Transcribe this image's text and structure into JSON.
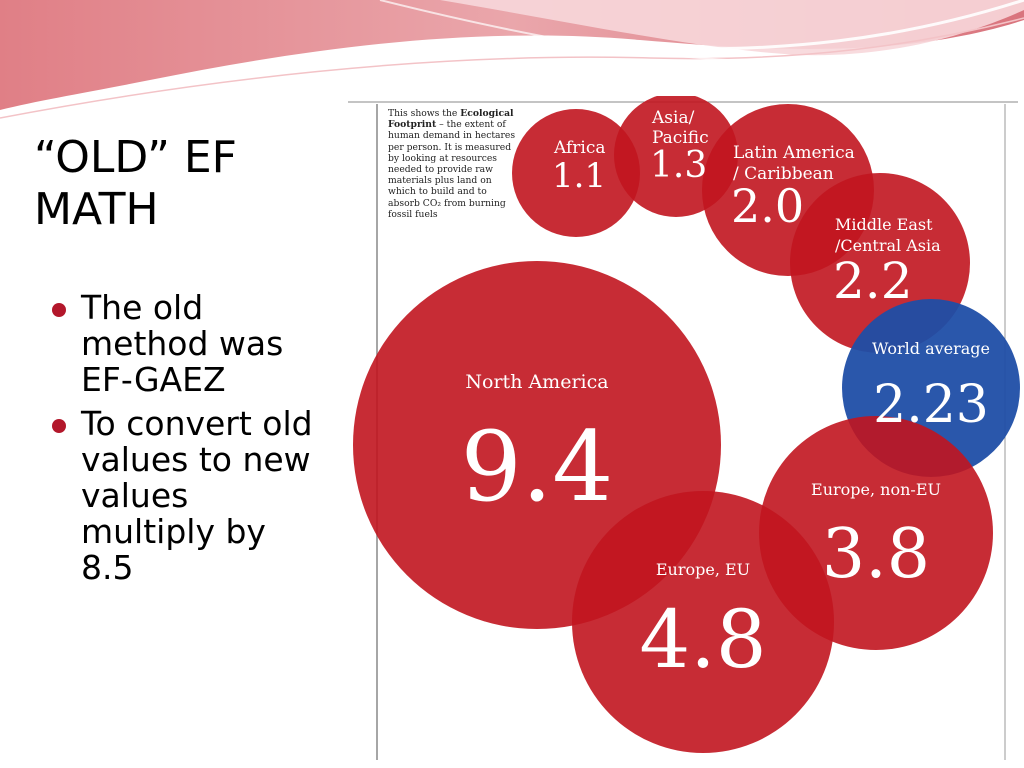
{
  "slide": {
    "title": "“OLD” EF MATH",
    "bullets": [
      {
        "text": "The old method was EF-GAEZ"
      },
      {
        "text": "To convert old values to new values multiply by 8.5"
      }
    ]
  },
  "figure": {
    "caption_bold": "Ecological Footprint",
    "caption_pre": "This shows the",
    "caption_post": "– the extent of human demand in hectares per person. It is measured by looking at resources needed to provide raw materials plus land on which to build and to absorb CO₂ from burning fossil fuels",
    "bubbles": [
      {
        "name": "Africa",
        "value": "1.1",
        "color": "#c1151f"
      },
      {
        "name": "Asia/ Pacific",
        "value": "1.3",
        "color": "#c1151f"
      },
      {
        "name": "Latin America / Caribbean",
        "value": "2.0",
        "color": "#c1151f"
      },
      {
        "name": "Middle East /Central Asia",
        "value": "2.2",
        "color": "#c1151f"
      },
      {
        "name": "World average",
        "value": "2.23",
        "color": "#1f4ea6"
      },
      {
        "name": "North America",
        "value": "9.4",
        "color": "#c1151f"
      },
      {
        "name": "Europe, non-EU",
        "value": "3.8",
        "color": "#c1151f"
      },
      {
        "name": "Europe, EU",
        "value": "4.8",
        "color": "#c1151f"
      }
    ]
  },
  "theme": {
    "accent": "#b3172b",
    "banner_pink": "#e9a3aa",
    "bubble_red": "#c1151f",
    "bubble_blue": "#1f4ea6"
  }
}
